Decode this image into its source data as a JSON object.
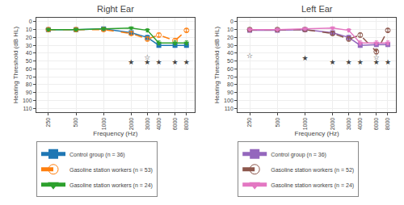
{
  "chart_data": [
    {
      "type": "line",
      "title": "Right Ear",
      "xlabel": "Frequency (Hz)",
      "ylabel": "Hearing Threshold (dB HL)",
      "x": [
        250,
        500,
        1000,
        2000,
        3000,
        4000,
        6000,
        8000
      ],
      "series": [
        {
          "name": "Control group (n = 36)",
          "marker": "square",
          "line_style": "solid",
          "values": [
            10,
            10,
            9,
            14,
            20,
            30,
            30,
            30
          ],
          "errors": [
            1.5,
            1.5,
            1.5,
            2.0,
            2.5,
            2.5,
            2.5,
            2.5
          ]
        },
        {
          "name": "Gasoline station workers (n = 53)",
          "marker": "circle-open",
          "line_style": "dash",
          "values": [
            10,
            10,
            10,
            15,
            22,
            17,
            24,
            11
          ],
          "errors": [
            1.5,
            1.5,
            1.5,
            2.0,
            2.5,
            2.5,
            2.5,
            2.0
          ]
        },
        {
          "name": "Gasoline station workers (n = 24)",
          "marker": "triangle-down",
          "line_style": "solid",
          "values": [
            10,
            10,
            9,
            8,
            11,
            27,
            27,
            27
          ],
          "errors": [
            1.5,
            1.5,
            1.5,
            1.5,
            2.0,
            2.5,
            2.5,
            2.5
          ]
        }
      ],
      "annotations": [
        {
          "text": "☆",
          "x": 3000,
          "y": 46,
          "color": "#444444"
        },
        {
          "text": "★",
          "x": 2000,
          "y": 52,
          "color": "#444444"
        },
        {
          "text": "★",
          "x": 3000,
          "y": 52,
          "color": "#444444"
        },
        {
          "text": "★",
          "x": 4000,
          "y": 52,
          "color": "#444444"
        },
        {
          "text": "★",
          "x": 6000,
          "y": 52,
          "color": "#444444"
        },
        {
          "text": "★",
          "x": 8000,
          "y": 52,
          "color": "#444444"
        }
      ],
      "log": "x",
      "xlim": [
        185,
        9800
      ],
      "xticks": [
        250,
        500,
        1000,
        2000,
        3000,
        4000,
        6000,
        8000
      ],
      "ylim": [
        115,
        -5
      ],
      "yticks": [
        0,
        10,
        20,
        30,
        40,
        50,
        60,
        70,
        80,
        90,
        100,
        110
      ],
      "grid": true,
      "legend": "lower left"
    },
    {
      "type": "line",
      "title": "Left Ear",
      "xlabel": "Frequency (Hz)",
      "ylabel": "Hearing Threshold (dB HL)",
      "x": [
        250,
        500,
        1000,
        2000,
        3000,
        4000,
        6000,
        8000
      ],
      "series": [
        {
          "name": "Control group (n = 36)",
          "marker": "square",
          "line_style": "solid",
          "values": [
            11,
            11,
            10,
            14,
            20,
            30,
            29,
            29
          ],
          "errors": [
            1.5,
            1.5,
            1.5,
            2.0,
            2.5,
            2.5,
            2.5,
            2.5
          ]
        },
        {
          "name": "Gasoline station workers (n = 52)",
          "marker": "circle-open",
          "line_style": "dash",
          "values": [
            10,
            10,
            10,
            15,
            22,
            17,
            38,
            11
          ],
          "errors": [
            1.5,
            1.5,
            1.5,
            2.0,
            2.5,
            2.5,
            3.0,
            2.0
          ]
        },
        {
          "name": "Gasoline station workers (n = 24)",
          "marker": "triangle-down",
          "line_style": "solid",
          "values": [
            10,
            10,
            9,
            8,
            11,
            27,
            27,
            27
          ],
          "errors": [
            1.5,
            1.5,
            1.5,
            1.5,
            2.0,
            2.5,
            2.5,
            2.5
          ]
        }
      ],
      "annotations": [
        {
          "text": "☆",
          "x": 250,
          "y": 44,
          "color": "#444444"
        },
        {
          "text": "☆",
          "x": 6000,
          "y": 46,
          "color": "#444444"
        },
        {
          "text": "★",
          "x": 1000,
          "y": 47,
          "color": "#444444"
        },
        {
          "text": "★",
          "x": 2000,
          "y": 52,
          "color": "#444444"
        },
        {
          "text": "★",
          "x": 3000,
          "y": 52,
          "color": "#444444"
        },
        {
          "text": "★",
          "x": 4000,
          "y": 52,
          "color": "#444444"
        },
        {
          "text": "★",
          "x": 6000,
          "y": 52,
          "color": "#444444"
        },
        {
          "text": "★",
          "x": 8000,
          "y": 52,
          "color": "#444444"
        }
      ],
      "log": "x",
      "xlim": [
        185,
        9800
      ],
      "xticks": [
        250,
        500,
        1000,
        2000,
        3000,
        4000,
        6000,
        8000
      ],
      "ylim": [
        115,
        -5
      ],
      "yticks": [
        0,
        10,
        20,
        30,
        40,
        50,
        60,
        70,
        80,
        90,
        100,
        110
      ],
      "grid": true,
      "legend": "lower left"
    }
  ]
}
